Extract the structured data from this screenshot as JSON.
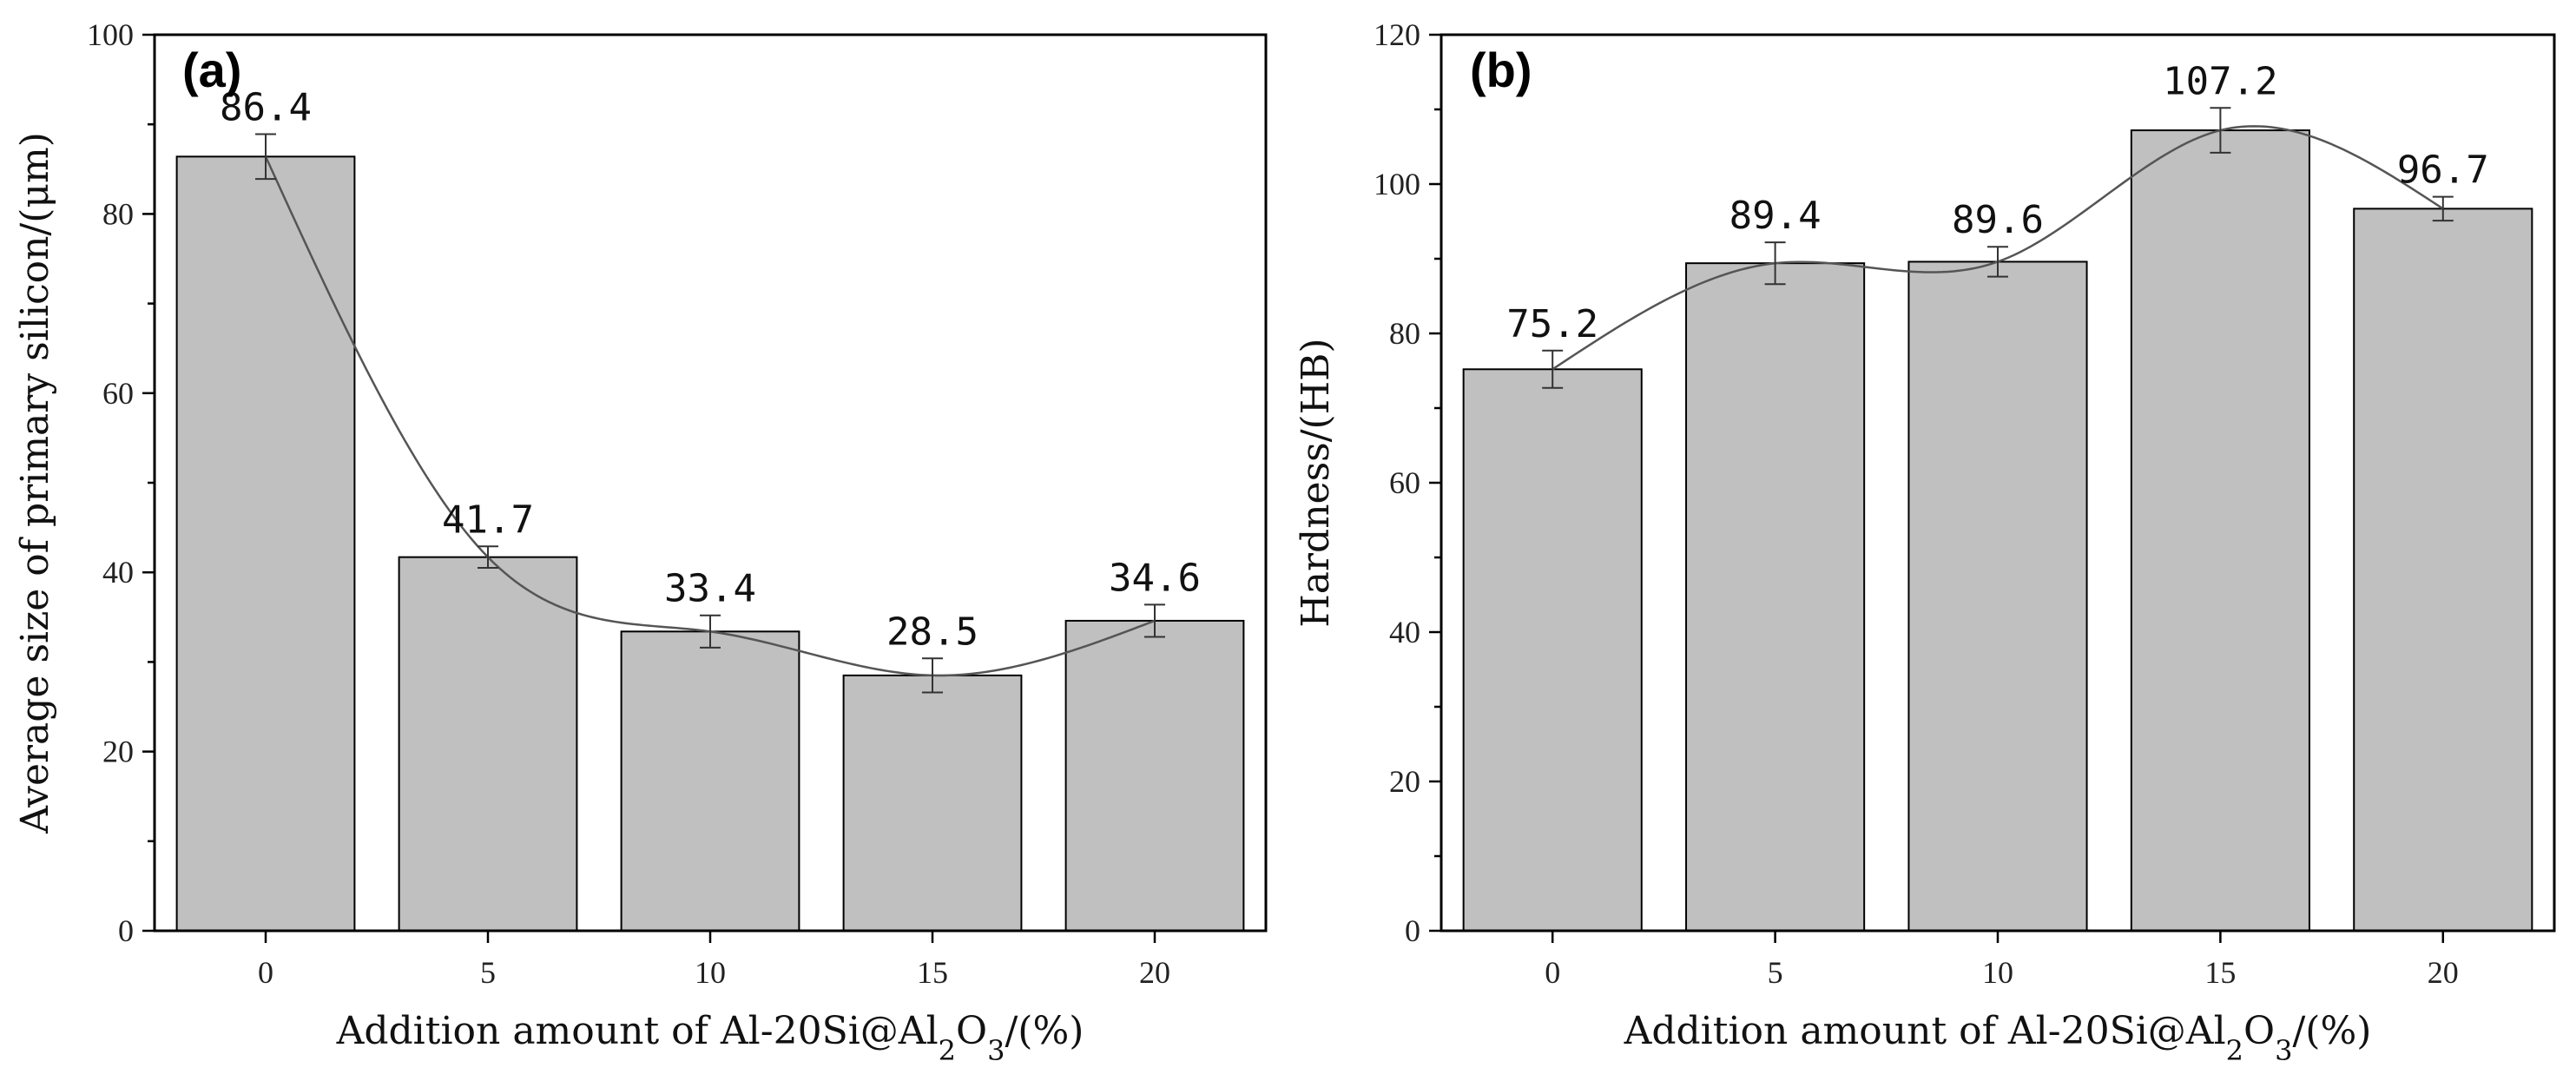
{
  "chart_data": [
    {
      "type": "bar",
      "panel_label": "(a)",
      "categories": [
        "0",
        "5",
        "10",
        "15",
        "20"
      ],
      "values": [
        86.4,
        41.7,
        33.4,
        28.5,
        34.6
      ],
      "value_labels": [
        "86.4",
        "41.7",
        "33.4",
        "28.5",
        "34.6"
      ],
      "errors": [
        2.5,
        1.2,
        1.8,
        1.9,
        1.8
      ],
      "xlabel_main": "Addition amount of Al-20Si@Al",
      "xlabel_sub1": "2",
      "xlabel_mid": "O",
      "xlabel_sub2": "3",
      "xlabel_tail": "/(%)",
      "ylabel": "Average size of primary silicon/(μm)",
      "ylim": [
        0,
        100
      ],
      "yticks": [
        "0",
        "20",
        "40",
        "60",
        "80",
        "100"
      ],
      "trendline": true,
      "trend_color": "#555555",
      "bar_color": "#c0c0c0"
    },
    {
      "type": "bar",
      "panel_label": "(b)",
      "categories": [
        "0",
        "5",
        "10",
        "15",
        "20"
      ],
      "values": [
        75.2,
        89.4,
        89.6,
        107.2,
        96.7
      ],
      "value_labels": [
        "75.2",
        "89.4",
        "89.6",
        "107.2",
        "96.7"
      ],
      "errors": [
        2.5,
        2.8,
        2.0,
        3.0,
        1.6
      ],
      "xlabel_main": "Addition amount of Al-20Si@Al",
      "xlabel_sub1": "2",
      "xlabel_mid": "O",
      "xlabel_sub2": "3",
      "xlabel_tail": "/(%)",
      "ylabel": "Hardness/(HB)",
      "ylim": [
        0,
        120
      ],
      "yticks": [
        "0",
        "20",
        "40",
        "60",
        "80",
        "100",
        "120"
      ],
      "trendline": true,
      "trend_color": "#555555",
      "bar_color": "#c0c0c0"
    }
  ]
}
